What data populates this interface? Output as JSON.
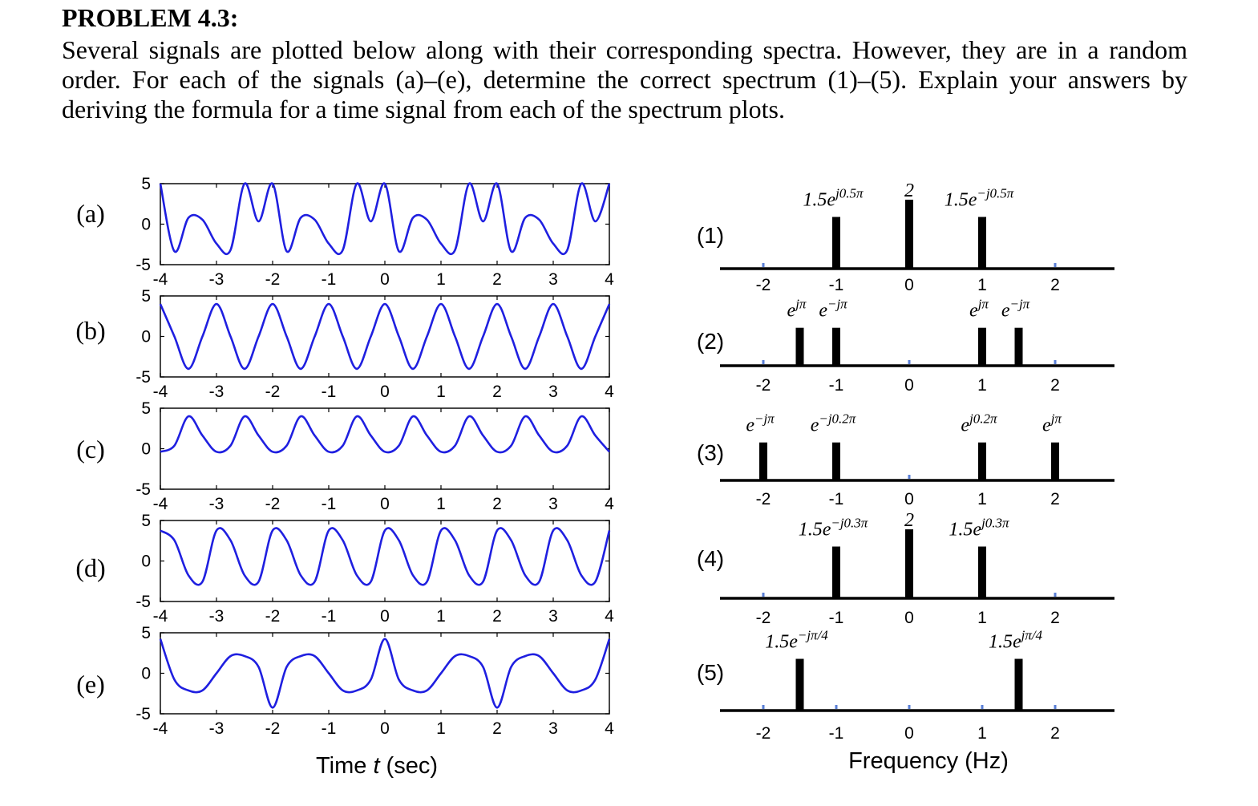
{
  "problem": {
    "title": "PROBLEM 4.3:",
    "text": "Several signals are plotted below along with their corresponding spectra. However, they are in a random order. For each of the signals (a)–(e), determine the correct spectrum (1)–(5). Explain your answers by deriving the formula for a time signal from each of the spectrum plots."
  },
  "chart_data": [
    {
      "type": "line",
      "subplot": "(a)",
      "xlim": [
        -4,
        4
      ],
      "ylim": [
        -5,
        5
      ],
      "xticks": [
        "-4",
        "-3",
        "-2",
        "-1",
        "0",
        "1",
        "2",
        "3",
        "4"
      ],
      "yticks": [
        "5",
        "0",
        "-5"
      ],
      "x": [
        -4,
        -3.75,
        -3.5,
        -3.25,
        -3,
        -2.75,
        -2.5,
        -2.25,
        -2,
        -1.75,
        -1.5,
        -1.25,
        -1,
        -0.75,
        -0.5,
        -0.25,
        0,
        0.25,
        0.5,
        0.75,
        1,
        1.25,
        1.5,
        1.75,
        2,
        2.25,
        2.5,
        2.75,
        3,
        3.25,
        3.5,
        3.75,
        4
      ],
      "y": [
        5.0,
        -3.35,
        0.78,
        0.55,
        -2.4,
        -3.2,
        5.0,
        0.35,
        5.0,
        -3.35,
        0.78,
        0.55,
        -2.4,
        -3.2,
        5.0,
        0.35,
        5.0,
        -3.35,
        0.78,
        0.55,
        -2.4,
        -3.2,
        5.0,
        0.35,
        5.0,
        -3.35,
        0.78,
        0.55,
        -2.4,
        -3.2,
        5.0,
        0.35,
        5.0
      ],
      "color": "#1f1fe0"
    },
    {
      "type": "line",
      "subplot": "(b)",
      "xlim": [
        -4,
        4
      ],
      "ylim": [
        -5,
        5
      ],
      "xticks": [
        "-4",
        "-3",
        "-2",
        "-1",
        "0",
        "1",
        "2",
        "3",
        "4"
      ],
      "yticks": [
        "5",
        "0",
        "-5"
      ],
      "x": [
        -4,
        -3.75,
        -3.5,
        -3.25,
        -3,
        -2.75,
        -2.5,
        -2.25,
        -2,
        -1.75,
        -1.5,
        -1.25,
        -1,
        -0.75,
        -0.5,
        -0.25,
        0,
        0.25,
        0.5,
        0.75,
        1,
        1.25,
        1.5,
        1.75,
        2,
        2.25,
        2.5,
        2.75,
        3,
        3.25,
        3.5,
        3.75,
        4
      ],
      "y": [
        4.0,
        0,
        -4.0,
        0,
        4.0,
        0,
        -4.0,
        0,
        4.0,
        0,
        -4.0,
        0,
        4.0,
        0,
        -4.0,
        0,
        4.0,
        0,
        -4.0,
        0,
        4.0,
        0,
        -4.0,
        0,
        4.0,
        0,
        -4.0,
        0,
        4.0,
        0,
        -4.0,
        0,
        4.0
      ],
      "color": "#1f1fe0"
    },
    {
      "type": "line",
      "subplot": "(c)",
      "xlim": [
        -4,
        4
      ],
      "ylim": [
        -5,
        5
      ],
      "xticks": [
        "-4",
        "-3",
        "-2",
        "-1",
        "0",
        "1",
        "2",
        "3",
        "4"
      ],
      "yticks": [
        "5",
        "0",
        "-5"
      ],
      "x": [
        -4,
        -3.75,
        -3.5,
        -3.25,
        -3,
        -2.75,
        -2.5,
        -2.25,
        -2,
        -1.75,
        -1.5,
        -1.25,
        -1,
        -0.75,
        -0.5,
        -0.25,
        0,
        0.25,
        0.5,
        0.75,
        1,
        1.25,
        1.5,
        1.75,
        2,
        2.25,
        2.5,
        2.75,
        3,
        3.25,
        3.5,
        3.75,
        4
      ],
      "y": [
        -0.38,
        0.38,
        4.0,
        1.62,
        -0.38,
        0.38,
        4.0,
        1.62,
        -0.38,
        0.38,
        4.0,
        1.62,
        -0.38,
        0.38,
        4.0,
        1.62,
        -0.38,
        0.38,
        4.0,
        1.62,
        -0.38,
        0.38,
        4.0,
        1.62,
        -0.38,
        0.38,
        4.0,
        1.62,
        -0.38,
        0.38,
        4.0,
        1.62,
        -0.38
      ],
      "color": "#1f1fe0"
    },
    {
      "type": "line",
      "subplot": "(d)",
      "xlim": [
        -4,
        4
      ],
      "ylim": [
        -5,
        5
      ],
      "xticks": [
        "-4",
        "-3",
        "-2",
        "-1",
        "0",
        "1",
        "2",
        "3",
        "4"
      ],
      "yticks": [
        "5",
        "0",
        "-5"
      ],
      "x": [
        -4,
        -3.75,
        -3.5,
        -3.25,
        -3,
        -2.75,
        -2.5,
        -2.25,
        -2,
        -1.75,
        -1.5,
        -1.25,
        -1,
        -0.75,
        -0.5,
        -0.25,
        0,
        0.25,
        0.5,
        0.75,
        1,
        1.25,
        1.5,
        1.75,
        2,
        2.25,
        2.5,
        2.75,
        3,
        3.25,
        3.5,
        3.75,
        4
      ],
      "y": [
        3.76,
        2.55,
        -1.76,
        -2.55,
        3.76,
        2.55,
        -1.76,
        -2.55,
        3.76,
        2.55,
        -1.76,
        -2.55,
        3.76,
        2.55,
        -1.76,
        -2.55,
        3.76,
        2.55,
        -1.76,
        -2.55,
        3.76,
        2.55,
        -1.76,
        -2.55,
        3.76,
        2.55,
        -1.76,
        -2.55,
        3.76,
        2.55,
        -1.76,
        -2.55,
        3.76
      ],
      "color": "#1f1fe0"
    },
    {
      "type": "line",
      "subplot": "(e)",
      "xlim": [
        -4,
        4
      ],
      "ylim": [
        -5,
        5
      ],
      "xticks": [
        "-4",
        "-3",
        "-2",
        "-1",
        "0",
        "1",
        "2",
        "3",
        "4"
      ],
      "yticks": [
        "5",
        "0",
        "-5"
      ],
      "x": [
        -4,
        -3.75,
        -3.5,
        -3.25,
        -3,
        -2.75,
        -2.5,
        -2.25,
        -2,
        -1.75,
        -1.5,
        -1.25,
        -1,
        -0.75,
        -0.5,
        -0.25,
        0,
        0.25,
        0.5,
        0.75,
        1,
        1.25,
        1.5,
        1.75,
        2,
        2.25,
        2.5,
        2.75,
        3,
        3.25,
        3.5,
        3.75,
        4
      ],
      "y": [
        4.24,
        -0.78,
        -2.12,
        -2.12,
        0,
        2.12,
        2.12,
        0.78,
        -4.24,
        0.78,
        2.12,
        2.12,
        0,
        -2.12,
        -2.12,
        -0.78,
        4.24,
        -0.78,
        -2.12,
        -2.12,
        0,
        2.12,
        2.12,
        0.78,
        -4.24,
        0.78,
        2.12,
        2.12,
        0,
        -2.12,
        -2.12,
        -0.78,
        4.24
      ],
      "color": "#1f1fe0"
    }
  ],
  "time_plots": {
    "row_labels": [
      "(a)",
      "(b)",
      "(c)",
      "(d)",
      "(e)"
    ],
    "xlabel_text": "Time ",
    "xlabel_var": "t",
    "xlabel_unit": " (sec)"
  },
  "spectra": {
    "labels": [
      "(1)",
      "(2)",
      "(3)",
      "(4)",
      "(5)"
    ],
    "xticks": [
      "-2",
      "-1",
      "0",
      "1",
      "2"
    ],
    "xlabel": "Frequency (Hz)",
    "lines": [
      {
        "spectrum": "(1)",
        "components": [
          {
            "freq": -1,
            "height": 0.75
          },
          {
            "freq": 0,
            "height": 1.0
          },
          {
            "freq": 1,
            "height": 0.75
          }
        ],
        "labels": [
          {
            "freq": -1,
            "base": "1.5e",
            "exp": "j0.5π"
          },
          {
            "freq": 0,
            "base": "2",
            "exp": ""
          },
          {
            "freq": 1,
            "base": "1.5e",
            "exp": "−j0.5π"
          }
        ]
      },
      {
        "spectrum": "(2)",
        "components": [
          {
            "freq": -1.5,
            "height": 0.55
          },
          {
            "freq": -1,
            "height": 0.55
          },
          {
            "freq": 1,
            "height": 0.55
          },
          {
            "freq": 1.5,
            "height": 0.55
          }
        ],
        "labels": [
          {
            "freq": -1.5,
            "base": "e",
            "exp": "jπ"
          },
          {
            "freq": -1,
            "base": "e",
            "exp": "−jπ"
          },
          {
            "freq": 1,
            "base": "e",
            "exp": "jπ"
          },
          {
            "freq": 1.5,
            "base": "e",
            "exp": "−jπ"
          }
        ]
      },
      {
        "spectrum": "(3)",
        "components": [
          {
            "freq": -2,
            "height": 0.55
          },
          {
            "freq": -1,
            "height": 0.55
          },
          {
            "freq": 1,
            "height": 0.55
          },
          {
            "freq": 2,
            "height": 0.55
          }
        ],
        "labels": [
          {
            "freq": -2,
            "base": "e",
            "exp": "−jπ"
          },
          {
            "freq": -1,
            "base": "e",
            "exp": "−j0.2π"
          },
          {
            "freq": 1,
            "base": "e",
            "exp": "j0.2π"
          },
          {
            "freq": 2,
            "base": "e",
            "exp": "jπ"
          }
        ]
      },
      {
        "spectrum": "(4)",
        "components": [
          {
            "freq": -1,
            "height": 0.75
          },
          {
            "freq": 0,
            "height": 1.0
          },
          {
            "freq": 1,
            "height": 0.75
          }
        ],
        "labels": [
          {
            "freq": -1,
            "base": "1.5e",
            "exp": "−j0.3π"
          },
          {
            "freq": 0,
            "base": "2",
            "exp": ""
          },
          {
            "freq": 1,
            "base": "1.5e",
            "exp": "j0.3π"
          }
        ]
      },
      {
        "spectrum": "(5)",
        "components": [
          {
            "freq": -1.5,
            "height": 0.75
          },
          {
            "freq": 1.5,
            "height": 0.75
          }
        ],
        "labels": [
          {
            "freq": -1.5,
            "base": "1.5e",
            "exp": "−jπ/4"
          },
          {
            "freq": 1.5,
            "base": "1.5e",
            "exp": "jπ/4"
          }
        ]
      }
    ]
  }
}
